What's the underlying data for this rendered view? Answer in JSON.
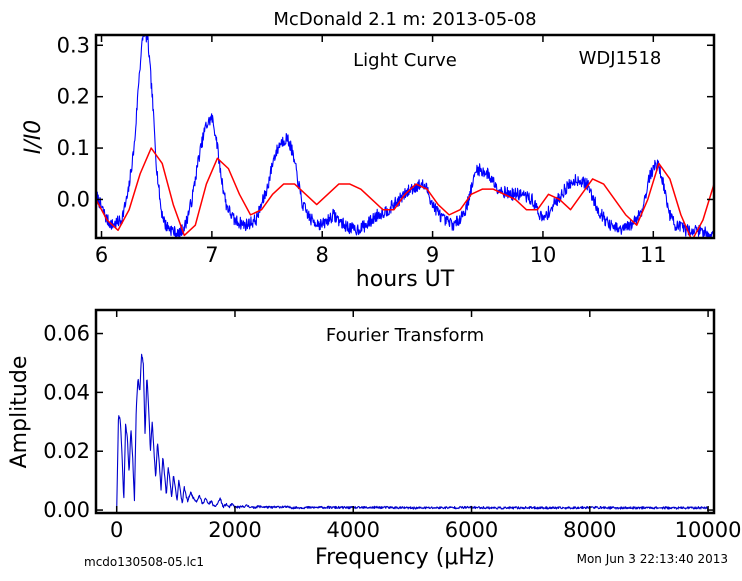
{
  "figure": {
    "title": "McDonald 2.1 m:  2013-05-08",
    "footer_left": "mcdo130508-05.lc1",
    "footer_right": "Mon Jun  3 22:13:40 2013"
  },
  "chart_data": [
    {
      "type": "line",
      "name": "light-curve",
      "annotation": "Light Curve",
      "object_label": "WDJ1518",
      "xlabel": "hours UT",
      "ylabel": "I/I0",
      "xlim": [
        5.95,
        11.55
      ],
      "ylim": [
        -0.075,
        0.32
      ],
      "xticks": [
        6,
        7,
        8,
        9,
        10,
        11
      ],
      "xtick_labels": [
        "6",
        "7",
        "8",
        "9",
        "10",
        "11"
      ],
      "yticks": [
        0.0,
        0.1,
        0.2,
        0.3
      ],
      "ytick_labels": [
        "0.0",
        "0.1",
        "0.2",
        "0.3"
      ],
      "grid": false,
      "series": [
        {
          "color": "#0000ff",
          "style": "noisy-data",
          "x": [
            5.95,
            6.05,
            6.1,
            6.18,
            6.24,
            6.3,
            6.34,
            6.38,
            6.42,
            6.46,
            6.5,
            6.54,
            6.58,
            6.64,
            6.7,
            6.76,
            6.82,
            6.88,
            6.94,
            7.0,
            7.04,
            7.08,
            7.13,
            7.2,
            7.3,
            7.4,
            7.5,
            7.56,
            7.62,
            7.68,
            7.72,
            7.76,
            7.82,
            7.9,
            8.0,
            8.1,
            8.2,
            8.3,
            8.4,
            8.5,
            8.6,
            8.7,
            8.8,
            8.9,
            8.95,
            9.0,
            9.1,
            9.2,
            9.3,
            9.4,
            9.5,
            9.6,
            9.7,
            9.8,
            9.9,
            9.95,
            10.0,
            10.1,
            10.2,
            10.3,
            10.4,
            10.5,
            10.6,
            10.7,
            10.8,
            10.9,
            10.96,
            11.02,
            11.06,
            11.1,
            11.15,
            11.2,
            11.3,
            11.4,
            11.55
          ],
          "y": [
            0.01,
            -0.04,
            -0.05,
            -0.04,
            0.01,
            0.11,
            0.24,
            0.33,
            0.31,
            0.2,
            0.06,
            -0.02,
            -0.05,
            -0.06,
            -0.07,
            -0.05,
            0.0,
            0.08,
            0.14,
            0.16,
            0.12,
            0.05,
            -0.01,
            -0.04,
            -0.05,
            -0.04,
            0.02,
            0.08,
            0.11,
            0.12,
            0.1,
            0.06,
            -0.01,
            -0.04,
            -0.05,
            -0.03,
            -0.05,
            -0.06,
            -0.05,
            -0.03,
            -0.02,
            0.0,
            0.02,
            0.03,
            0.02,
            -0.01,
            -0.04,
            -0.05,
            -0.02,
            0.06,
            0.05,
            0.02,
            0.01,
            0.01,
            0.0,
            -0.02,
            -0.04,
            -0.01,
            0.02,
            0.04,
            0.03,
            -0.02,
            -0.05,
            -0.06,
            -0.05,
            -0.02,
            0.04,
            0.07,
            0.06,
            0.02,
            -0.03,
            -0.05,
            -0.06,
            -0.06,
            -0.07
          ]
        },
        {
          "color": "#ff0000",
          "style": "smooth-fit",
          "x": [
            5.95,
            6.05,
            6.15,
            6.25,
            6.35,
            6.45,
            6.55,
            6.65,
            6.75,
            6.85,
            6.95,
            7.05,
            7.15,
            7.25,
            7.35,
            7.45,
            7.55,
            7.65,
            7.75,
            7.85,
            7.95,
            8.05,
            8.15,
            8.25,
            8.35,
            8.45,
            8.55,
            8.65,
            8.75,
            8.85,
            8.95,
            9.05,
            9.15,
            9.25,
            9.35,
            9.45,
            9.55,
            9.65,
            9.75,
            9.85,
            9.95,
            10.05,
            10.15,
            10.25,
            10.35,
            10.45,
            10.55,
            10.65,
            10.75,
            10.85,
            10.95,
            11.05,
            11.15,
            11.25,
            11.35,
            11.45,
            11.55
          ],
          "y": [
            0.0,
            -0.04,
            -0.06,
            -0.02,
            0.05,
            0.1,
            0.07,
            -0.01,
            -0.07,
            -0.05,
            0.03,
            0.08,
            0.06,
            0.01,
            -0.03,
            -0.02,
            0.01,
            0.03,
            0.03,
            0.01,
            -0.01,
            0.01,
            0.03,
            0.03,
            0.02,
            0.0,
            -0.02,
            -0.02,
            0.01,
            0.03,
            0.02,
            -0.01,
            -0.03,
            -0.02,
            0.01,
            0.02,
            0.02,
            0.01,
            0.0,
            -0.02,
            -0.02,
            0.01,
            0.0,
            -0.02,
            0.01,
            0.04,
            0.03,
            0.0,
            -0.03,
            -0.05,
            0.0,
            0.07,
            0.04,
            -0.03,
            -0.08,
            -0.04,
            0.03
          ]
        }
      ]
    },
    {
      "type": "line",
      "name": "fourier-transform",
      "annotation": "Fourier Transform",
      "xlabel": "Frequency (μHz)",
      "ylabel": "Amplitude",
      "xlim": [
        -350,
        10100
      ],
      "ylim": [
        -0.001,
        0.068
      ],
      "xticks": [
        0,
        2000,
        4000,
        6000,
        8000,
        10000
      ],
      "xtick_labels": [
        "0",
        "2000",
        "4000",
        "6000",
        "8000",
        "10000"
      ],
      "yticks": [
        0.0,
        0.02,
        0.04,
        0.06
      ],
      "ytick_labels": [
        "0.00",
        "0.02",
        "0.04",
        "0.06"
      ],
      "grid": false,
      "series": [
        {
          "color": "#0000cc",
          "style": "noisy-data",
          "x": [
            0,
            30,
            60,
            90,
            120,
            150,
            180,
            210,
            240,
            270,
            300,
            330,
            360,
            390,
            420,
            450,
            480,
            510,
            540,
            570,
            600,
            630,
            660,
            690,
            720,
            750,
            780,
            810,
            840,
            870,
            900,
            930,
            960,
            990,
            1020,
            1050,
            1080,
            1110,
            1140,
            1170,
            1200,
            1250,
            1300,
            1350,
            1400,
            1450,
            1500,
            1550,
            1600,
            1650,
            1700,
            1750,
            1800,
            1850,
            1900,
            1950,
            2000,
            2100,
            2200,
            2300,
            2400,
            2600,
            2800,
            3000,
            3500,
            4000,
            4500,
            5000,
            5500,
            6000,
            6500,
            7000,
            7500,
            8000,
            8500,
            9000,
            9500,
            10000
          ],
          "y": [
            0.0,
            0.032,
            0.031,
            0.019,
            0.003,
            0.029,
            0.025,
            0.012,
            0.028,
            0.018,
            0.003,
            0.034,
            0.045,
            0.04,
            0.053,
            0.05,
            0.025,
            0.046,
            0.035,
            0.02,
            0.03,
            0.02,
            0.011,
            0.023,
            0.016,
            0.007,
            0.018,
            0.012,
            0.005,
            0.015,
            0.01,
            0.004,
            0.012,
            0.008,
            0.003,
            0.01,
            0.006,
            0.002,
            0.008,
            0.005,
            0.003,
            0.006,
            0.004,
            0.003,
            0.005,
            0.002,
            0.004,
            0.002,
            0.003,
            0.001,
            0.002,
            0.004,
            0.001,
            0.002,
            0.001,
            0.002,
            0.001,
            0.001,
            0.0015,
            0.0008,
            0.0012,
            0.0009,
            0.0011,
            0.0008,
            0.0009,
            0.0008,
            0.0009,
            0.0007,
            0.0008,
            0.0009,
            0.0007,
            0.0008,
            0.0007,
            0.0009,
            0.0007,
            0.0008,
            0.0007,
            0.0008
          ]
        }
      ]
    }
  ]
}
